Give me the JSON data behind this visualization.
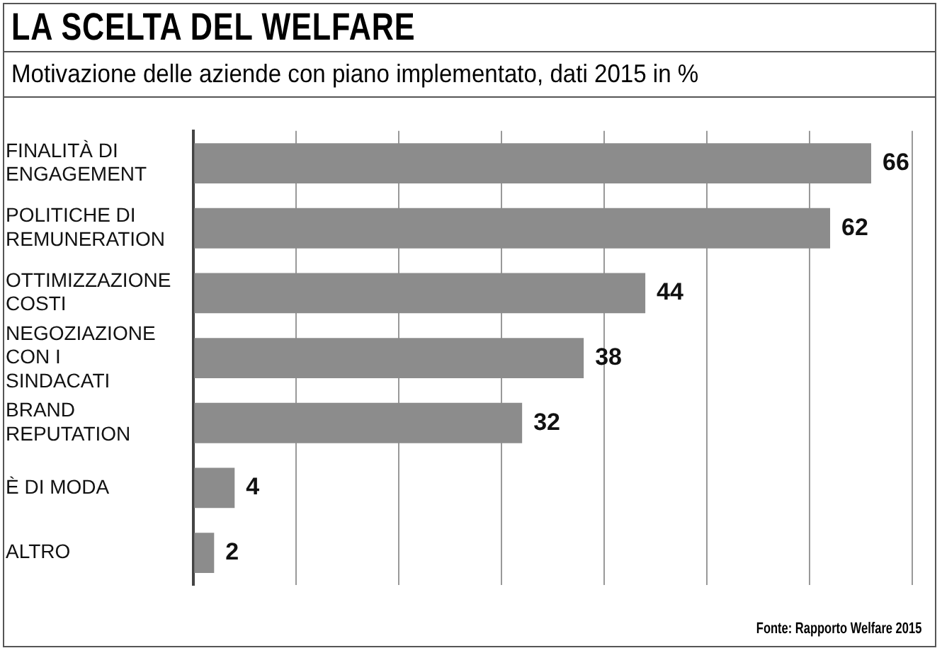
{
  "chart_data": {
    "type": "bar",
    "orientation": "horizontal",
    "title": "LA SCELTA DEL WELFARE",
    "subtitle": "Motivazione delle aziende con piano implementato, dati 2015 in %",
    "categories": [
      "FINALITÀ DI ENGAGEMENT",
      "POLITICHE DI REMUNERATION",
      "OTTIMIZZAZIONE COSTI",
      "NEGOZIAZIONE CON I SINDACATI",
      "BRAND REPUTATION",
      "È DI MODA",
      "ALTRO"
    ],
    "values": [
      66,
      62,
      44,
      38,
      32,
      4,
      2
    ],
    "color": "#8c8c8c",
    "xlim": [
      0,
      70
    ],
    "xticks": [
      {
        "value": 0,
        "label": null
      },
      {
        "value": 10,
        "label": null
      },
      {
        "value": 20,
        "label": null
      },
      {
        "value": 30,
        "label": null
      },
      {
        "value": 40,
        "label": null
      },
      {
        "value": 50,
        "label": null
      },
      {
        "value": 60,
        "label": null
      },
      {
        "value": 70,
        "label": null
      }
    ],
    "grid": "x",
    "data_labels": true,
    "tick_labels": "y",
    "legend": false,
    "annotations": [
      "Fonte: Rapporto Welfare 2015"
    ]
  }
}
